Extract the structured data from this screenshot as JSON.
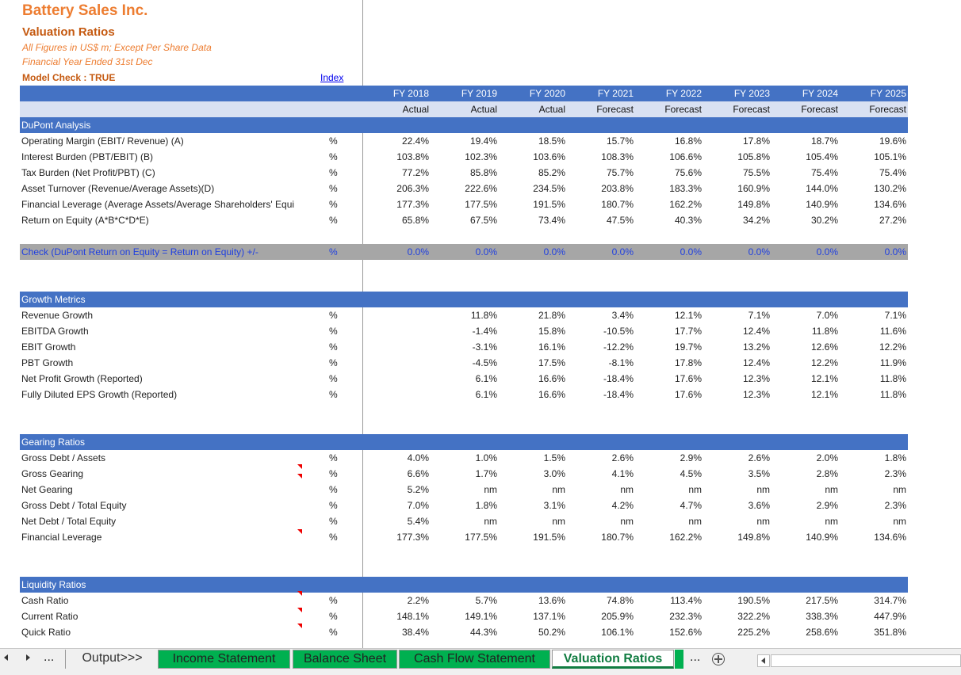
{
  "header": {
    "company": "Battery Sales Inc.",
    "title": "Valuation Ratios",
    "note1": "All Figures in US$ m; Except Per Share Data",
    "note2": "Financial Year Ended 31st Dec",
    "model_check": "Model Check : TRUE",
    "index_link": "Index"
  },
  "columns": {
    "years": [
      "FY 2018",
      "FY 2019",
      "FY 2020",
      "FY 2021",
      "FY 2022",
      "FY 2023",
      "FY 2024",
      "FY 2025"
    ],
    "types": [
      "Actual",
      "Actual",
      "Actual",
      "Forecast",
      "Forecast",
      "Forecast",
      "Forecast",
      "Forecast"
    ]
  },
  "sections": [
    {
      "title": "DuPont Analysis",
      "rows": [
        {
          "label": "Operating Margin (EBIT/ Revenue) (A)",
          "unit": "%",
          "values": [
            "22.4%",
            "19.4%",
            "18.5%",
            "15.7%",
            "16.8%",
            "17.8%",
            "18.7%",
            "19.6%"
          ]
        },
        {
          "label": "Interest Burden (PBT/EBIT) (B)",
          "unit": "%",
          "values": [
            "103.8%",
            "102.3%",
            "103.6%",
            "108.3%",
            "106.6%",
            "105.8%",
            "105.4%",
            "105.1%"
          ]
        },
        {
          "label": "Tax Burden (Net Profit/PBT) (C)",
          "unit": "%",
          "values": [
            "77.2%",
            "85.8%",
            "85.2%",
            "75.7%",
            "75.6%",
            "75.5%",
            "75.4%",
            "75.4%"
          ]
        },
        {
          "label": "Asset Turnover (Revenue/Average Assets)(D)",
          "unit": "%",
          "values": [
            "206.3%",
            "222.6%",
            "234.5%",
            "203.8%",
            "183.3%",
            "160.9%",
            "144.0%",
            "130.2%"
          ]
        },
        {
          "label": "Financial Leverage (Average Assets/Average Shareholders' Equi",
          "unit": "%",
          "values": [
            "177.3%",
            "177.5%",
            "191.5%",
            "180.7%",
            "162.2%",
            "149.8%",
            "140.9%",
            "134.6%"
          ]
        },
        {
          "label": "Return on Equity (A*B*C*D*E)",
          "unit": "%",
          "values": [
            "65.8%",
            "67.5%",
            "73.4%",
            "47.5%",
            "40.3%",
            "34.2%",
            "30.2%",
            "27.2%"
          ]
        }
      ]
    },
    {
      "title": "Growth Metrics",
      "rows": [
        {
          "label": "Revenue Growth",
          "unit": "%",
          "values": [
            null,
            "11.8%",
            "21.8%",
            "3.4%",
            "12.1%",
            "7.1%",
            "7.0%",
            "7.1%"
          ]
        },
        {
          "label": "EBITDA Growth",
          "unit": "%",
          "values": [
            null,
            "-1.4%",
            "15.8%",
            "-10.5%",
            "17.7%",
            "12.4%",
            "11.8%",
            "11.6%"
          ]
        },
        {
          "label": "EBIT Growth",
          "unit": "%",
          "values": [
            null,
            "-3.1%",
            "16.1%",
            "-12.2%",
            "19.7%",
            "13.2%",
            "12.6%",
            "12.2%"
          ]
        },
        {
          "label": "PBT Growth",
          "unit": "%",
          "values": [
            null,
            "-4.5%",
            "17.5%",
            "-8.1%",
            "17.8%",
            "12.4%",
            "12.2%",
            "11.9%"
          ]
        },
        {
          "label": "Net Profit Growth (Reported)",
          "unit": "%",
          "values": [
            null,
            "6.1%",
            "16.6%",
            "-18.4%",
            "17.6%",
            "12.3%",
            "12.1%",
            "11.8%"
          ]
        },
        {
          "label": "Fully Diluted EPS Growth (Reported)",
          "unit": "%",
          "values": [
            null,
            "6.1%",
            "16.6%",
            "-18.4%",
            "17.6%",
            "12.3%",
            "12.1%",
            "11.8%"
          ]
        }
      ]
    },
    {
      "title": "Gearing Ratios",
      "rows": [
        {
          "label": "Gross Debt / Assets",
          "unit": "%",
          "values": [
            "4.0%",
            "1.0%",
            "1.5%",
            "2.6%",
            "2.9%",
            "2.6%",
            "2.0%",
            "1.8%"
          ]
        },
        {
          "label": "Gross Gearing",
          "unit": "%",
          "values": [
            "6.6%",
            "1.7%",
            "3.0%",
            "4.1%",
            "4.5%",
            "3.5%",
            "2.8%",
            "2.3%"
          ]
        },
        {
          "label": "Net Gearing",
          "unit": "%",
          "values": [
            "5.2%",
            "nm",
            "nm",
            "nm",
            "nm",
            "nm",
            "nm",
            "nm"
          ]
        },
        {
          "label": "Gross Debt / Total Equity",
          "unit": "%",
          "values": [
            "7.0%",
            "1.8%",
            "3.1%",
            "4.2%",
            "4.7%",
            "3.6%",
            "2.9%",
            "2.3%"
          ]
        },
        {
          "label": "Net Debt / Total Equity",
          "unit": "%",
          "values": [
            "5.4%",
            "nm",
            "nm",
            "nm",
            "nm",
            "nm",
            "nm",
            "nm"
          ]
        },
        {
          "label": "Financial Leverage",
          "unit": "%",
          "values": [
            "177.3%",
            "177.5%",
            "191.5%",
            "180.7%",
            "162.2%",
            "149.8%",
            "140.9%",
            "134.6%"
          ]
        }
      ]
    },
    {
      "title": "Liquidity Ratios",
      "rows": [
        {
          "label": "Cash Ratio",
          "unit": "%",
          "values": [
            "2.2%",
            "5.7%",
            "13.6%",
            "74.8%",
            "113.4%",
            "190.5%",
            "217.5%",
            "314.7%"
          ]
        },
        {
          "label": "Current Ratio",
          "unit": "%",
          "values": [
            "148.1%",
            "149.1%",
            "137.1%",
            "205.9%",
            "232.3%",
            "322.2%",
            "338.3%",
            "447.9%"
          ]
        },
        {
          "label": "Quick Ratio",
          "unit": "%",
          "values": [
            "38.4%",
            "44.3%",
            "50.2%",
            "106.1%",
            "152.6%",
            "225.2%",
            "258.6%",
            "351.8%"
          ]
        }
      ]
    }
  ],
  "check": {
    "label": "Check (DuPont Return on Equity = Return on Equity) +/-",
    "unit": "%",
    "values": [
      "0.0%",
      "0.0%",
      "0.0%",
      "0.0%",
      "0.0%",
      "0.0%",
      "0.0%",
      "0.0%"
    ]
  },
  "tabs": {
    "more_left": "...",
    "items": [
      "Output>>>",
      "Income Statement",
      "Balance Sheet",
      "Cash Flow Statement",
      "Valuation Ratios"
    ],
    "more_right": "..."
  }
}
